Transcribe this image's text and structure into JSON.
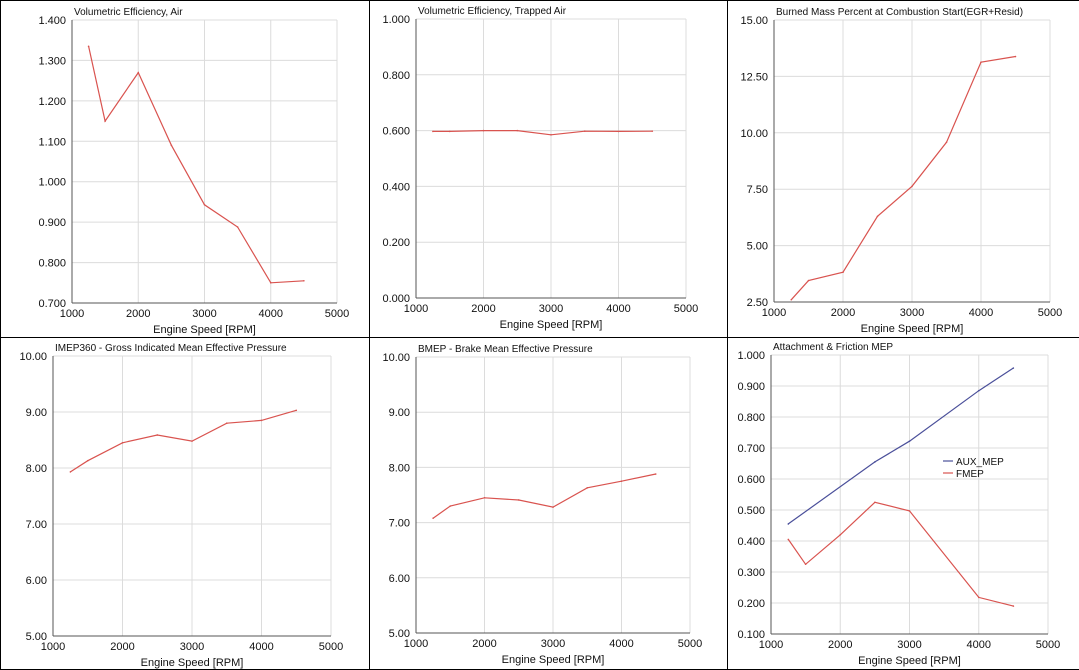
{
  "colors": {
    "red": "#d9534f",
    "blue": "#4a4f9a",
    "grid": "#dcdcdc"
  },
  "chart_data": [
    {
      "type": "line",
      "title": "Volumetric Efficiency, Air",
      "xlabel": "Engine Speed [RPM]",
      "xlim": [
        1000,
        5000
      ],
      "ylim": [
        0.7,
        1.4
      ],
      "xticks": [
        "1000",
        "2000",
        "3000",
        "4000",
        "5000"
      ],
      "yticks": [
        "0.700",
        "0.800",
        "0.900",
        "1.000",
        "1.100",
        "1.200",
        "1.300",
        "1.400"
      ],
      "grid": true,
      "series": [
        {
          "color": "red",
          "x": [
            1250,
            1500,
            2000,
            2500,
            3000,
            3500,
            4000,
            4500
          ],
          "y": [
            1.335,
            1.15,
            1.27,
            1.09,
            0.943,
            0.888,
            0.75,
            0.755
          ]
        }
      ]
    },
    {
      "type": "line",
      "title": "Volumetric Efficiency, Trapped Air",
      "xlabel": "Engine Speed [RPM]",
      "xlim": [
        1000,
        5000
      ],
      "ylim": [
        0,
        1
      ],
      "xticks": [
        "1000",
        "2000",
        "3000",
        "4000",
        "5000"
      ],
      "yticks": [
        "0.000",
        "0.200",
        "0.400",
        "0.600",
        "0.800",
        "1.000"
      ],
      "grid": true,
      "series": [
        {
          "color": "red",
          "x": [
            1250,
            1500,
            2000,
            2500,
            3000,
            3500,
            4000,
            4500
          ],
          "y": [
            0.597,
            0.597,
            0.6,
            0.6,
            0.585,
            0.598,
            0.597,
            0.598
          ]
        }
      ]
    },
    {
      "type": "line",
      "title": "Burned Mass Percent at Combustion Start(EGR+Resid)",
      "xlabel": "Engine Speed [RPM]",
      "xlim": [
        1000,
        5000
      ],
      "ylim": [
        2.5,
        15
      ],
      "xticks": [
        "1000",
        "2000",
        "3000",
        "4000",
        "5000"
      ],
      "yticks": [
        "2.50",
        "5.00",
        "7.50",
        "10.00",
        "12.50",
        "15.00"
      ],
      "grid": true,
      "series": [
        {
          "color": "red",
          "x": [
            1250,
            1500,
            2000,
            2500,
            3000,
            3500,
            4000,
            4500
          ],
          "y": [
            2.6,
            3.45,
            3.82,
            6.3,
            7.63,
            9.58,
            13.13,
            13.38
          ]
        }
      ]
    },
    {
      "type": "line",
      "title": "IMEP360 - Gross Indicated Mean Effective Pressure",
      "xlabel": "Engine Speed [RPM]",
      "xlim": [
        1000,
        5000
      ],
      "ylim": [
        5,
        10
      ],
      "xticks": [
        "1000",
        "2000",
        "3000",
        "4000",
        "5000"
      ],
      "yticks": [
        "5.00",
        "6.00",
        "7.00",
        "8.00",
        "9.00",
        "10.00"
      ],
      "grid": true,
      "series": [
        {
          "color": "red",
          "x": [
            1250,
            1500,
            2000,
            2500,
            3000,
            3500,
            4000,
            4500
          ],
          "y": [
            7.93,
            8.13,
            8.45,
            8.59,
            8.48,
            8.8,
            8.85,
            9.03
          ]
        }
      ]
    },
    {
      "type": "line",
      "title": "BMEP - Brake Mean Effective Pressure",
      "xlabel": "Engine Speed [RPM]",
      "xlim": [
        1000,
        5000
      ],
      "ylim": [
        5,
        10
      ],
      "xticks": [
        "1000",
        "2000",
        "3000",
        "4000",
        "5000"
      ],
      "yticks": [
        "5.00",
        "6.00",
        "7.00",
        "8.00",
        "9.00",
        "10.00"
      ],
      "grid": true,
      "series": [
        {
          "color": "red",
          "x": [
            1250,
            1500,
            2000,
            2500,
            3000,
            3500,
            4000,
            4500
          ],
          "y": [
            7.08,
            7.3,
            7.45,
            7.41,
            7.28,
            7.63,
            7.75,
            7.88
          ]
        }
      ]
    },
    {
      "type": "line",
      "title": "Attachment & Friction MEP",
      "xlabel": "Engine Speed [RPM]",
      "xlim": [
        1000,
        5000
      ],
      "ylim": [
        0.1,
        1.0
      ],
      "xticks": [
        "1000",
        "2000",
        "3000",
        "4000",
        "5000"
      ],
      "yticks": [
        "0.100",
        "0.200",
        "0.300",
        "0.400",
        "0.500",
        "0.600",
        "0.700",
        "0.800",
        "0.900",
        "1.000"
      ],
      "grid": true,
      "legend": "middle-right",
      "series": [
        {
          "name": "AUX_MEP",
          "color": "blue",
          "x": [
            1250,
            2500,
            3000,
            4000,
            4500
          ],
          "y": [
            0.455,
            0.655,
            0.722,
            0.885,
            0.958
          ]
        },
        {
          "name": "FMEP",
          "color": "red",
          "x": [
            1250,
            1500,
            2000,
            2500,
            3000,
            4000,
            4500
          ],
          "y": [
            0.405,
            0.325,
            0.42,
            0.525,
            0.497,
            0.218,
            0.19
          ]
        }
      ]
    }
  ]
}
